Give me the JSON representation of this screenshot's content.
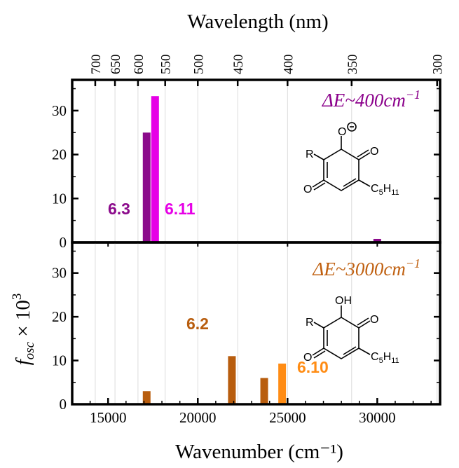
{
  "chart_data": {
    "type": "bar",
    "x_axis": {
      "label": "Wavenumber (cm⁻¹)",
      "range": [
        13000,
        33500
      ],
      "ticks": [
        15000,
        20000,
        25000,
        30000
      ],
      "tick_labels": [
        "15000",
        "20000",
        "25000",
        "30000"
      ]
    },
    "top_axis": {
      "label": "Wavelength (nm)",
      "ticks": [
        700,
        650,
        600,
        550,
        500,
        450,
        400,
        350,
        300
      ],
      "tick_labels": [
        "700",
        "650",
        "600",
        "550",
        "500",
        "450",
        "400",
        "350",
        "300"
      ]
    },
    "y_axis_label_parts": {
      "f": "f",
      "sub": "osc",
      "times": " × 10",
      "sup": "3"
    },
    "panels": [
      {
        "ylim": [
          0,
          37
        ],
        "yticks": [
          0,
          10,
          20,
          30
        ],
        "ytick_labels": [
          "0",
          "10",
          "20",
          "30"
        ],
        "annotation": {
          "delta_e": "ΔE~400cm",
          "exp": "−1",
          "color": "#8b008b"
        },
        "series": [
          {
            "name": "6.3",
            "color": "#8b0a8b",
            "points": [
              {
                "x": 17150,
                "y": 25
              },
              {
                "x": 30000,
                "y": 0.8
              }
            ]
          },
          {
            "name": "6.11",
            "color": "#e600e6",
            "points": [
              {
                "x": 17620,
                "y": 33.3
              }
            ]
          }
        ],
        "molecule": {
          "r": "R",
          "o_minus": "O",
          "o1": "O",
          "o2": "O",
          "c5": "C",
          "c5_sub": "5",
          "h": "H",
          "h_sub": "11"
        }
      },
      {
        "ylim": [
          0,
          37
        ],
        "yticks": [
          0,
          10,
          20,
          30
        ],
        "ytick_labels": [
          "0",
          "10",
          "20",
          "30"
        ],
        "annotation": {
          "delta_e": "ΔE~3000cm",
          "exp": "−1",
          "color": "#c06010"
        },
        "series": [
          {
            "name": "6.2",
            "color": "#b85d0e",
            "points": [
              {
                "x": 17150,
                "y": 3
              },
              {
                "x": 21900,
                "y": 11
              },
              {
                "x": 23700,
                "y": 6
              }
            ]
          },
          {
            "name": "6.10",
            "color": "#ff8c14",
            "points": [
              {
                "x": 24700,
                "y": 9.3
              }
            ]
          }
        ],
        "molecule": {
          "r": "R",
          "oh": "OH",
          "o1": "O",
          "o2": "O",
          "c5": "C",
          "c5_sub": "5",
          "h": "H",
          "h_sub": "11"
        }
      }
    ]
  }
}
